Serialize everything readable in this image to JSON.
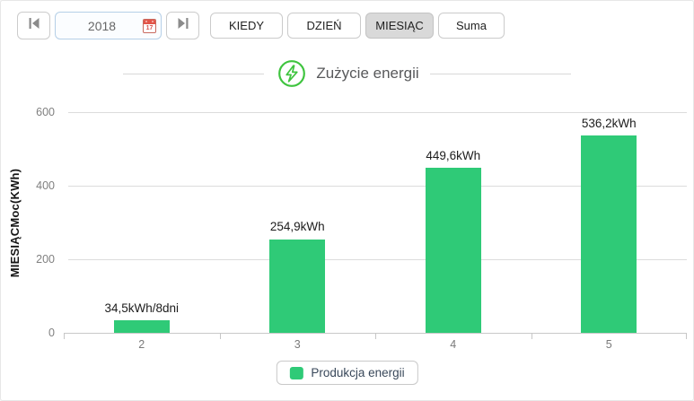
{
  "toolbar": {
    "year_value": "2018",
    "prev_icon": "skip-previous-icon",
    "next_icon": "skip-next-icon",
    "calendar_icon_day": "17",
    "buttons": [
      {
        "label": "KIEDY",
        "selected": false
      },
      {
        "label": "DZIEŃ",
        "selected": false
      },
      {
        "label": "MIESIĄC",
        "selected": true
      },
      {
        "label": "Suma",
        "selected": false
      }
    ]
  },
  "header": {
    "title": "Zużycie energii",
    "icon": "energy-bolt-icon",
    "icon_color": "#3fc43f"
  },
  "chart_data": {
    "type": "bar",
    "title": "Zużycie energii",
    "categories": [
      "2",
      "3",
      "4",
      "5"
    ],
    "values": [
      34.5,
      254.9,
      449.6,
      536.2
    ],
    "bar_labels": [
      "34,5kWh/8dni",
      "254,9kWh",
      "449,6kWh",
      "536,2kWh"
    ],
    "series_name": "Produkcja energii",
    "xlabel": "",
    "ylabel": "MIESIĄCMoc(KWh)",
    "yticks": [
      0,
      200,
      400,
      600
    ],
    "ylim": [
      0,
      600
    ],
    "bar_color": "#2fca77",
    "grid": true,
    "legend_position": "bottom"
  },
  "legend": {
    "label": "Produkcja energii",
    "swatch_color": "#2fca77"
  }
}
